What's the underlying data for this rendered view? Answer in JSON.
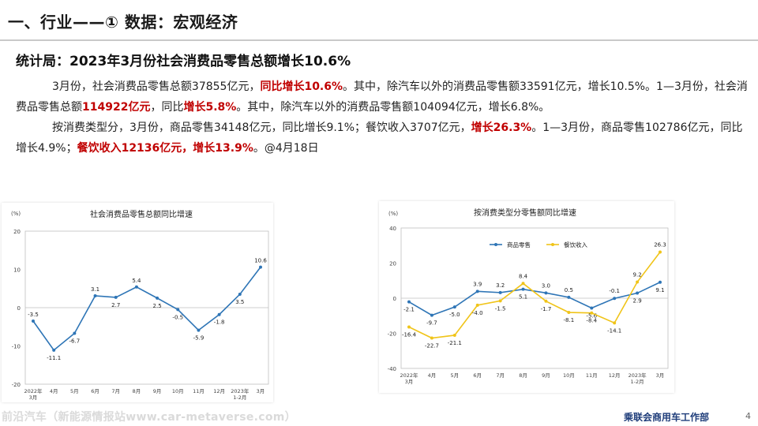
{
  "header": {
    "title": "一、行业——① 数据：宏观经济"
  },
  "subtitle": "统计局：2023年3月份社会消费品零售总额增长10.6%",
  "paragraph1": {
    "s1": "3月份，社会消费品零售总额37855亿元，",
    "h1": "同比增长10.6%",
    "s2": "。其中，除汽车以外的消费品零售额33591亿元，增长10.5%。1—3月份，社会消费品零售总额",
    "h2": "114922亿元",
    "s3": "，同比",
    "h3": "增长5.8%",
    "s4": "。其中，除汽车以外的消费品零售额104094亿元，增长6.8%。"
  },
  "paragraph2": {
    "s1": "按消费类型分，3月份，商品零售34148亿元，同比增长9.1%；餐饮收入3707亿元，",
    "h1": "增长26.3%",
    "s2": "。1—3月份，商品零售102786亿元，同比增长4.9%；",
    "h2": "餐饮收入12136亿元，增长13.9%",
    "s3": "。@4月18日"
  },
  "footer": {
    "watermark": "前沿汽车（新能源情报站www.car-metaverse.com）",
    "org": "乘联会商用车工作部",
    "page": "4"
  },
  "colors": {
    "accent_red": "#c00000",
    "line_blue": "#2e75b6",
    "line_yellow": "#f0c419"
  },
  "chart_data": [
    {
      "type": "line",
      "title": "社会消费品零售总额同比增速",
      "unit_label": "(%)",
      "categories": [
        "2022年\n3月",
        "4月",
        "5月",
        "6月",
        "7月",
        "8月",
        "9月",
        "10月",
        "11月",
        "12月",
        "2023年\n1-2月",
        "3月"
      ],
      "values": [
        -3.5,
        -11.1,
        -6.7,
        3.1,
        2.7,
        5.4,
        2.5,
        -0.5,
        -5.9,
        -1.8,
        3.5,
        10.6
      ],
      "ylim": [
        -20,
        20
      ],
      "yticks": [
        -20,
        -10,
        0,
        10,
        20
      ],
      "series_color": "#2e75b6"
    },
    {
      "type": "line",
      "title": "按消费类型分零售额同比增速",
      "unit_label": "(%)",
      "categories": [
        "2022年\n3月",
        "4月",
        "5月",
        "6月",
        "7月",
        "8月",
        "9月",
        "10月",
        "11月",
        "12月",
        "2023年\n1-2月",
        "3月"
      ],
      "ylim": [
        -40,
        40
      ],
      "yticks": [
        -40,
        -20,
        0,
        20,
        40
      ],
      "series": [
        {
          "name": "商品零售",
          "color": "#2e75b6",
          "values": [
            -2.1,
            -9.7,
            -5.0,
            3.9,
            3.2,
            5.1,
            3.0,
            0.5,
            -5.6,
            -0.1,
            2.9,
            9.1
          ]
        },
        {
          "name": "餐饮收入",
          "color": "#f0c419",
          "values": [
            -16.4,
            -22.7,
            -21.1,
            -4.0,
            -1.5,
            8.4,
            -1.7,
            -8.1,
            -8.4,
            -14.1,
            9.2,
            26.3
          ]
        }
      ]
    }
  ]
}
